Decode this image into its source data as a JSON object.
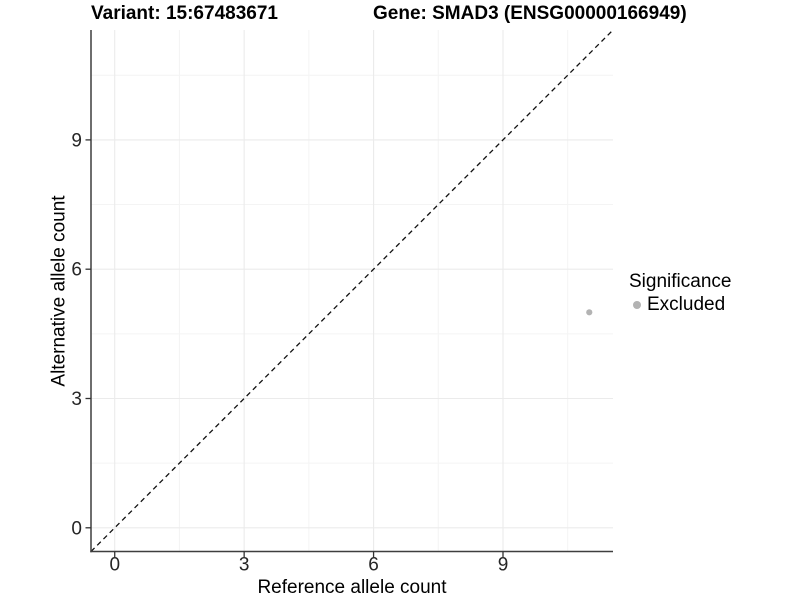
{
  "chart_data": {
    "type": "scatter",
    "titles": {
      "left": "Variant: 15:67483671",
      "right": "Gene: SMAD3 (ENSG00000166949)"
    },
    "xlabel": "Reference allele count",
    "ylabel": "Alternative allele count",
    "xlim": [
      -0.55,
      11.55
    ],
    "ylim": [
      -0.55,
      11.55
    ],
    "xticks": [
      0,
      3,
      6,
      9
    ],
    "yticks": [
      0,
      3,
      6,
      9
    ],
    "xminor": [
      1.5,
      4.5,
      7.5,
      10.5
    ],
    "yminor": [
      1.5,
      4.5,
      7.5,
      10.5
    ],
    "grid": true,
    "legend_position": "right",
    "legend": {
      "title": "Significance",
      "items": [
        {
          "label": "Excluded",
          "color": "#b3b3b3"
        }
      ]
    },
    "identity_line": {
      "style": "dashed",
      "color": "#111111"
    },
    "series": [
      {
        "name": "Excluded",
        "color": "#b3b3b3",
        "point_radius": 3.1,
        "points": [
          [
            11,
            5
          ]
        ]
      }
    ],
    "style": {
      "axis_color": "#3f3f3f",
      "tick_color": "#333333",
      "grid_major": "#ebebeb",
      "grid_minor": "#f4f4f4",
      "tick_label_color": "#262626",
      "background": "#ffffff"
    }
  }
}
